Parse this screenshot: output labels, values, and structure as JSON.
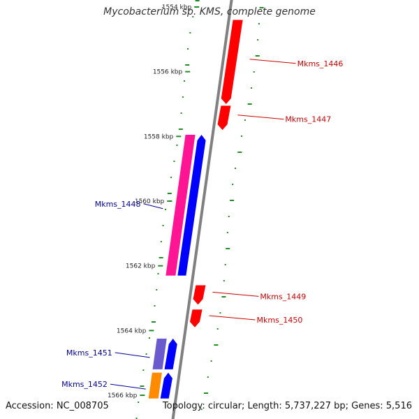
{
  "title": "Mycobacterium sp. KMS, complete genome",
  "footer": {
    "accession": "Accession: NC_008705",
    "topology": "Topology: circular; Length: 5,737,227 bp; Genes: 5,516"
  },
  "ticks": [
    {
      "label": "1554 kbp",
      "kbp": 1554
    },
    {
      "label": "1556 kbp",
      "kbp": 1556
    },
    {
      "label": "1558 kbp",
      "kbp": 1558
    },
    {
      "label": "1560 kbp",
      "kbp": 1560
    },
    {
      "label": "1562 kbp",
      "kbp": 1562
    },
    {
      "label": "1564 kbp",
      "kbp": 1564
    },
    {
      "label": "1566 kbp",
      "kbp": 1566
    }
  ],
  "genes": [
    {
      "name": "Mkms_1446",
      "strand": "reverse",
      "color": "#ff0000",
      "start_kbp": 1554.4,
      "end_kbp": 1557.0
    },
    {
      "name": "Mkms_1447",
      "strand": "reverse",
      "color": "#ff0000",
      "start_kbp": 1557.05,
      "end_kbp": 1557.8
    },
    {
      "name": "Mkms_1448",
      "strand": "forward",
      "color": "#0000ff",
      "partner_color": "#ff1493",
      "start_kbp": 1557.95,
      "end_kbp": 1562.3
    },
    {
      "name": "Mkms_1449",
      "strand": "reverse",
      "color": "#ff0000",
      "start_kbp": 1562.6,
      "end_kbp": 1563.2
    },
    {
      "name": "Mkms_1450",
      "strand": "reverse",
      "color": "#ff0000",
      "start_kbp": 1563.35,
      "end_kbp": 1563.9
    },
    {
      "name": "Mkms_1451",
      "strand": "forward",
      "color": "#0000ff",
      "partner_color": "#6a5acd",
      "start_kbp": 1564.25,
      "end_kbp": 1565.2
    },
    {
      "name": "Mkms_1452",
      "strand": "forward",
      "color": "#0000ff",
      "partner_color": "#ff8c00",
      "start_kbp": 1565.3,
      "end_kbp": 1566.1
    }
  ],
  "colors": {
    "backbone": "#808080",
    "gc_dots": "#228b22",
    "reverse_label": "#cc0000",
    "forward_label": "#000099"
  }
}
